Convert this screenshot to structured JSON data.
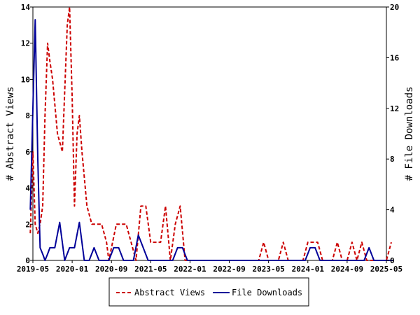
{
  "chart_data": {
    "type": "line",
    "x_ticks": [
      "2019-05",
      "2020-01",
      "2020-09",
      "2021-05",
      "2022-01",
      "2022-09",
      "2023-05",
      "2024-01",
      "2024-09",
      "2025-05"
    ],
    "y_left": {
      "label": "# Abstract Views",
      "range": [
        0,
        14
      ],
      "ticks": [
        0,
        2,
        4,
        6,
        8,
        10,
        12,
        14
      ]
    },
    "y_right": {
      "label": "# File Downloads",
      "range": [
        0,
        20
      ],
      "ticks": [
        0,
        4,
        8,
        12,
        16,
        20
      ]
    },
    "legend_position": "bottom-center",
    "series": [
      {
        "name": "Abstract Views",
        "axis": "left",
        "color": "#cc0000",
        "style": "dashed",
        "points": [
          [
            "2019-04-15",
            1.5
          ],
          [
            "2019-05-01",
            6
          ],
          [
            "2019-05-15",
            2
          ],
          [
            "2019-06-01",
            1.5
          ],
          [
            "2019-06-15",
            2
          ],
          [
            "2019-07-01",
            3
          ],
          [
            "2019-07-15",
            8
          ],
          [
            "2019-08-01",
            12
          ],
          [
            "2019-08-15",
            11
          ],
          [
            "2019-09-01",
            10
          ],
          [
            "2019-10-01",
            7
          ],
          [
            "2019-11-01",
            6
          ],
          [
            "2019-12-01",
            13
          ],
          [
            "2019-12-15",
            14
          ],
          [
            "2020-01-01",
            9
          ],
          [
            "2020-01-15",
            3
          ],
          [
            "2020-02-01",
            7
          ],
          [
            "2020-02-15",
            8
          ],
          [
            "2020-03-01",
            6
          ],
          [
            "2020-04-01",
            3
          ],
          [
            "2020-05-01",
            2
          ],
          [
            "2020-07-01",
            2
          ],
          [
            "2020-08-01",
            1
          ],
          [
            "2020-08-15",
            0
          ],
          [
            "2020-10-01",
            2
          ],
          [
            "2020-12-01",
            2
          ],
          [
            "2021-01-01",
            1
          ],
          [
            "2021-02-01",
            0
          ],
          [
            "2021-03-01",
            3
          ],
          [
            "2021-04-01",
            3
          ],
          [
            "2021-05-01",
            1
          ],
          [
            "2021-06-01",
            1
          ],
          [
            "2021-07-01",
            1
          ],
          [
            "2021-08-01",
            3
          ],
          [
            "2021-09-01",
            0
          ],
          [
            "2021-10-01",
            2
          ],
          [
            "2021-11-01",
            3
          ],
          [
            "2021-12-01",
            0
          ],
          [
            "2023-03-01",
            0
          ],
          [
            "2023-04-01",
            1
          ],
          [
            "2023-05-01",
            0
          ],
          [
            "2023-07-01",
            0
          ],
          [
            "2023-08-01",
            1
          ],
          [
            "2023-09-01",
            0
          ],
          [
            "2023-12-01",
            0
          ],
          [
            "2024-01-01",
            1
          ],
          [
            "2024-03-01",
            1
          ],
          [
            "2024-04-01",
            0
          ],
          [
            "2024-06-01",
            0
          ],
          [
            "2024-07-01",
            1
          ],
          [
            "2024-08-01",
            0
          ],
          [
            "2024-09-01",
            0
          ],
          [
            "2024-10-01",
            1
          ],
          [
            "2024-11-01",
            0
          ],
          [
            "2024-12-01",
            1
          ],
          [
            "2025-01-01",
            0
          ],
          [
            "2025-05-01",
            0
          ],
          [
            "2025-06-01",
            1
          ]
        ]
      },
      {
        "name": "File Downloads",
        "axis": "right",
        "color": "#000099",
        "style": "solid",
        "points": [
          [
            "2019-04-15",
            4
          ],
          [
            "2019-05-01",
            12
          ],
          [
            "2019-05-15",
            19
          ],
          [
            "2019-06-01",
            8
          ],
          [
            "2019-06-15",
            1
          ],
          [
            "2019-07-01",
            0.5
          ],
          [
            "2019-07-15",
            0
          ],
          [
            "2019-08-01",
            0.5
          ],
          [
            "2019-08-15",
            1
          ],
          [
            "2019-09-15",
            1
          ],
          [
            "2019-10-15",
            3
          ],
          [
            "2019-11-15",
            0
          ],
          [
            "2019-12-15",
            1
          ],
          [
            "2020-01-15",
            1
          ],
          [
            "2020-02-15",
            3
          ],
          [
            "2020-03-15",
            0
          ],
          [
            "2020-04-15",
            0
          ],
          [
            "2020-05-15",
            1
          ],
          [
            "2020-06-15",
            0
          ],
          [
            "2020-07-15",
            0
          ],
          [
            "2020-08-15",
            0
          ],
          [
            "2020-09-15",
            1
          ],
          [
            "2020-10-15",
            1
          ],
          [
            "2020-11-15",
            0
          ],
          [
            "2020-12-15",
            0
          ],
          [
            "2021-01-15",
            0
          ],
          [
            "2021-02-15",
            2
          ],
          [
            "2021-03-15",
            1
          ],
          [
            "2021-04-15",
            0
          ],
          [
            "2021-06-15",
            0
          ],
          [
            "2021-09-15",
            0
          ],
          [
            "2021-10-15",
            1
          ],
          [
            "2021-11-15",
            1
          ],
          [
            "2021-12-15",
            0
          ],
          [
            "2023-12-15",
            0
          ],
          [
            "2024-01-15",
            1
          ],
          [
            "2024-02-15",
            1
          ],
          [
            "2024-03-15",
            0
          ],
          [
            "2024-12-15",
            0
          ],
          [
            "2025-01-15",
            1
          ],
          [
            "2025-02-15",
            0
          ],
          [
            "2025-06-15",
            0
          ]
        ]
      }
    ]
  }
}
